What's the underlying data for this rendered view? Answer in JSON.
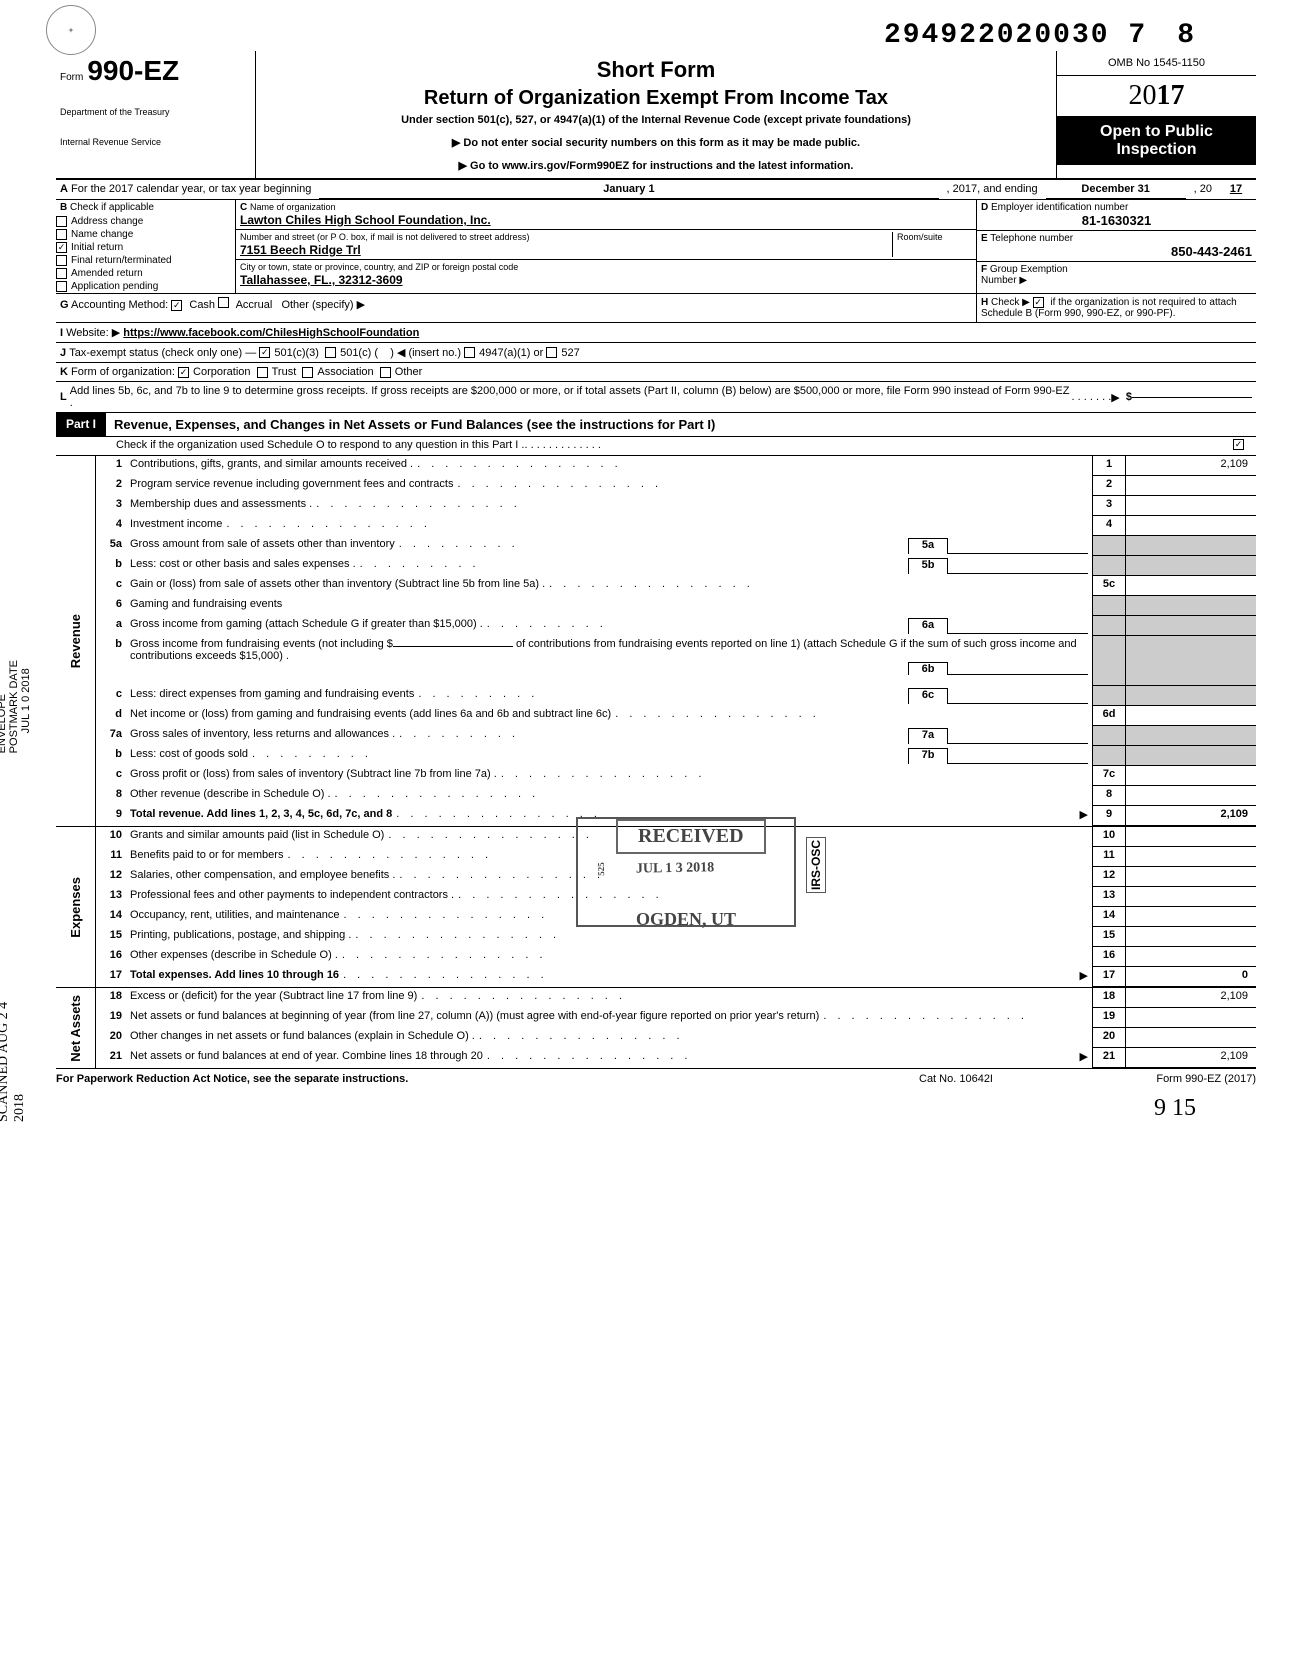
{
  "top_number": "294922020030 7",
  "top_number_suffix": "8",
  "form": {
    "prefix": "Form",
    "number": "990-EZ",
    "dept1": "Department of the Treasury",
    "dept2": "Internal Revenue Service"
  },
  "header": {
    "short_form": "Short Form",
    "title": "Return of Organization Exempt From Income Tax",
    "subtitle": "Under section 501(c), 527, or 4947(a)(1) of the Internal Revenue Code (except private foundations)",
    "instr1": "▶ Do not enter social security numbers on this form as it may be made public.",
    "instr2": "▶ Go to www.irs.gov/Form990EZ for instructions and the latest information.",
    "omb": "OMB No 1545-1150",
    "year_prefix": "20",
    "year_suffix": "17",
    "open_public": "Open to Public Inspection"
  },
  "row_a": {
    "label": "A",
    "text": "For the 2017 calendar year, or tax year beginning",
    "mid1": "January 1",
    "mid2": ", 2017, and ending",
    "end1": "December 31",
    "end2": ", 20",
    "end3": "17"
  },
  "section_b": {
    "label": "B",
    "caption": "Check if applicable",
    "items": [
      {
        "label": "Address change",
        "checked": false
      },
      {
        "label": "Name change",
        "checked": false
      },
      {
        "label": "Initial return",
        "checked": true
      },
      {
        "label": "Final return/terminated",
        "checked": false
      },
      {
        "label": "Amended return",
        "checked": false
      },
      {
        "label": "Application pending",
        "checked": false
      }
    ]
  },
  "section_c": {
    "c_label": "C",
    "c_caption": "Name of organization",
    "org_name": "Lawton Chiles High School Foundation, Inc.",
    "addr_label": "Number and street (or P O. box, if mail is not delivered to street address)",
    "room_label": "Room/suite",
    "street": "7151 Beech Ridge Trl",
    "city_label": "City or town, state or province, country, and ZIP or foreign postal code",
    "city": "Tallahassee, FL., 32312-3609"
  },
  "section_d": {
    "label": "D",
    "caption": "Employer identification number",
    "value": "81-1630321"
  },
  "section_e": {
    "label": "E",
    "caption": "Telephone number",
    "value": "850-443-2461"
  },
  "section_f": {
    "label": "F",
    "caption": "Group Exemption",
    "sub": "Number ▶"
  },
  "row_g": {
    "label": "G",
    "caption": "Accounting Method:",
    "opts": [
      "Cash",
      "Accrual"
    ],
    "other": "Other (specify) ▶",
    "cash_checked": true
  },
  "row_h": {
    "label": "H",
    "text1": "Check ▶",
    "text2": "if the organization is not required to attach Schedule B (Form 990, 990-EZ, or 990-PF).",
    "checked": true
  },
  "row_i": {
    "label": "I",
    "caption": "Website: ▶",
    "value": "https://www.facebook.com/ChilesHighSchoolFoundation"
  },
  "row_j": {
    "label": "J",
    "caption": "Tax-exempt status (check only one) —",
    "opt1": "501(c)(3)",
    "opt2": "501(c) (",
    "insert": ") ◀ (insert no.)",
    "opt3": "4947(a)(1) or",
    "opt4": "527",
    "c3_checked": true
  },
  "row_k": {
    "label": "K",
    "caption": "Form of organization:",
    "opts": [
      "Corporation",
      "Trust",
      "Association",
      "Other"
    ],
    "corp_checked": true
  },
  "row_l": {
    "label": "L",
    "text": "Add lines 5b, 6c, and 7b to line 9 to determine gross receipts. If gross receipts are $200,000 or more, or if total assets (Part II, column (B) below) are $500,000 or more, file Form 990 instead of Form 990-EZ .",
    "arrow": "▶",
    "dollar": "$"
  },
  "part1": {
    "badge": "Part I",
    "title": "Revenue, Expenses, and Changes in Net Assets or Fund Balances (see the instructions for Part I)",
    "checkline": "Check if the organization used Schedule O to respond to any question in this Part I .",
    "checked": true
  },
  "revenue_label": "Revenue",
  "expenses_label": "Expenses",
  "netassets_label": "Net Assets",
  "lines": {
    "1": {
      "num": "1",
      "desc": "Contributions, gifts, grants, and similar amounts received .",
      "rt": "1",
      "val": "2,109"
    },
    "2": {
      "num": "2",
      "desc": "Program service revenue including government fees and contracts",
      "rt": "2",
      "val": ""
    },
    "3": {
      "num": "3",
      "desc": "Membership dues and assessments .",
      "rt": "3",
      "val": ""
    },
    "4": {
      "num": "4",
      "desc": "Investment income",
      "rt": "4",
      "val": ""
    },
    "5a": {
      "num": "5a",
      "desc": "Gross amount from sale of assets other than inventory",
      "inner": "5a"
    },
    "5b": {
      "num": "b",
      "desc": "Less: cost or other basis and sales expenses .",
      "inner": "5b"
    },
    "5c": {
      "num": "c",
      "desc": "Gain or (loss) from sale of assets other than inventory (Subtract line 5b from line 5a) .",
      "rt": "5c",
      "val": ""
    },
    "6": {
      "num": "6",
      "desc": "Gaming and fundraising events"
    },
    "6a": {
      "num": "a",
      "desc": "Gross income from gaming (attach Schedule G if greater than $15,000) .",
      "inner": "6a"
    },
    "6b": {
      "num": "b",
      "desc1": "Gross income from fundraising events (not including  $",
      "desc2": "of contributions from fundraising events reported on line 1) (attach Schedule G if the sum of such gross income and contributions exceeds $15,000) .",
      "inner": "6b"
    },
    "6c": {
      "num": "c",
      "desc": "Less: direct expenses from gaming and fundraising events",
      "inner": "6c"
    },
    "6d": {
      "num": "d",
      "desc": "Net income or (loss) from gaming and fundraising events (add lines 6a and 6b and subtract line 6c)",
      "rt": "6d",
      "val": ""
    },
    "7a": {
      "num": "7a",
      "desc": "Gross sales of inventory, less returns and allowances .",
      "inner": "7a"
    },
    "7b": {
      "num": "b",
      "desc": "Less: cost of goods sold",
      "inner": "7b"
    },
    "7c": {
      "num": "c",
      "desc": "Gross profit or (loss) from sales of inventory (Subtract line 7b from line 7a) .",
      "rt": "7c",
      "val": ""
    },
    "8": {
      "num": "8",
      "desc": "Other revenue (describe in Schedule O) .",
      "rt": "8",
      "val": ""
    },
    "9": {
      "num": "9",
      "desc": "Total revenue. Add lines 1, 2, 3, 4, 5c, 6d, 7c, and 8",
      "rt": "9",
      "val": "2,109",
      "bold": true,
      "arrow": true
    },
    "10": {
      "num": "10",
      "desc": "Grants and similar amounts paid (list in Schedule O)",
      "rt": "10",
      "val": ""
    },
    "11": {
      "num": "11",
      "desc": "Benefits paid to or for members",
      "rt": "11",
      "val": ""
    },
    "12": {
      "num": "12",
      "desc": "Salaries, other compensation, and employee benefits .",
      "rt": "12",
      "val": ""
    },
    "13": {
      "num": "13",
      "desc": "Professional fees and other payments to independent contractors .",
      "rt": "13",
      "val": ""
    },
    "14": {
      "num": "14",
      "desc": "Occupancy, rent, utilities, and maintenance",
      "rt": "14",
      "val": ""
    },
    "15": {
      "num": "15",
      "desc": "Printing, publications, postage, and shipping .",
      "rt": "15",
      "val": ""
    },
    "16": {
      "num": "16",
      "desc": "Other expenses (describe in Schedule O) .",
      "rt": "16",
      "val": ""
    },
    "17": {
      "num": "17",
      "desc": "Total expenses. Add lines 10 through 16",
      "rt": "17",
      "val": "0",
      "bold": true,
      "arrow": true
    },
    "18": {
      "num": "18",
      "desc": "Excess or (deficit) for the year (Subtract line 17 from line 9)",
      "rt": "18",
      "val": "2,109"
    },
    "19": {
      "num": "19",
      "desc": "Net assets or fund balances at beginning of year (from line 27, column (A)) (must agree with end-of-year figure reported on prior year's return)",
      "rt": "19",
      "val": ""
    },
    "20": {
      "num": "20",
      "desc": "Other changes in net assets or fund balances (explain in Schedule O) .",
      "rt": "20",
      "val": ""
    },
    "21": {
      "num": "21",
      "desc": "Net assets or fund balances at end of year. Combine lines 18 through 20",
      "rt": "21",
      "val": "2,109",
      "arrow": true
    }
  },
  "stamps": {
    "received": "RECEIVED",
    "date": "JUL 1 3 2018",
    "ogden": "OGDEN, UT",
    "irs_osc": "IRS-OSC",
    "s25": "525"
  },
  "footer": {
    "left": "For Paperwork Reduction Act Notice, see the separate instructions.",
    "mid": "Cat No. 10642I",
    "right": "Form 990-EZ (2017)"
  },
  "margin": {
    "envelope": "ENVELOPE",
    "postmark": "POSTMARK DATE",
    "jul": "JUL 1 0 2018",
    "scanned": "SCANNED AUG 2 4 2018"
  },
  "hand": "9 15"
}
